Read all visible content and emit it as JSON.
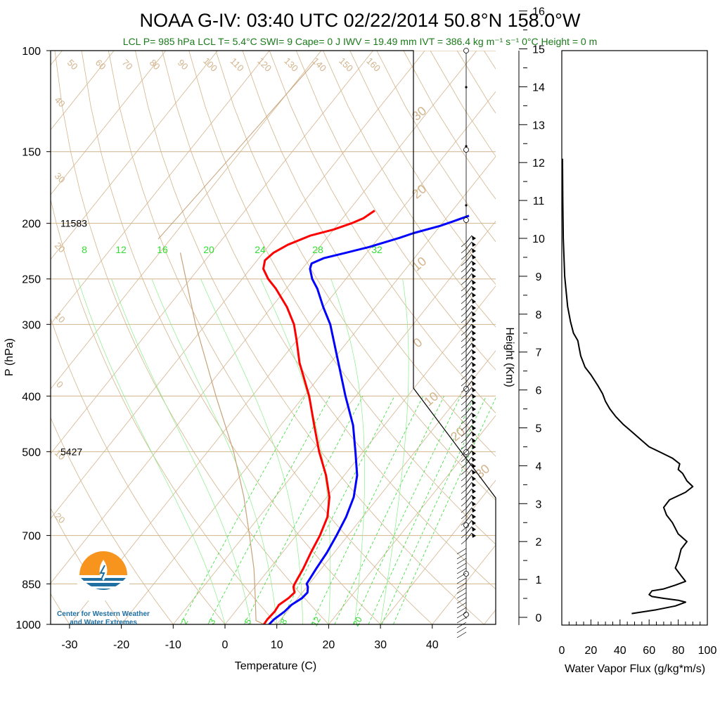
{
  "title": "NOAA G-IV: 03:40 UTC 02/22/2014  50.8°N 158.0°W",
  "subtitle": "LCL P= 985 hPa  LCL T= 5.4°C  SWI= 9  Cape= 0 J  IWV = 19.49 mm  IVT = 386.4 kg m⁻¹ s⁻¹  0°C Height = 0 m",
  "logo": {
    "line1": "Center for Western Weather",
    "line2": "and Water Extremes"
  },
  "colors": {
    "temperature": "#ff0000",
    "dewpoint": "#0000ff",
    "isotherm": "#d2b48c",
    "mixing_ratio": "#33dd33",
    "subtitle": "#1a7a1a"
  },
  "chart_data": [
    {
      "type": "line",
      "subtype": "skew-t",
      "xlabel": "Temperature (C)",
      "ylabel": "P (hPa)",
      "xlim": [
        -33,
        52
      ],
      "ylim": [
        1000,
        100
      ],
      "y_scale": "log",
      "x_ticks": [
        "-30",
        "-20",
        "-10",
        "0",
        "10",
        "20",
        "30",
        "40"
      ],
      "y_ticks": [
        "100",
        "150",
        "200",
        "250",
        "300",
        "400",
        "500",
        "700",
        "850",
        "1000"
      ],
      "height_annotations": [
        {
          "p": 200,
          "label": "11583"
        },
        {
          "p": 500,
          "label": "5427"
        }
      ],
      "isotherm_labels_top": [
        "50",
        "60",
        "70",
        "80",
        "90",
        "100",
        "110",
        "120",
        "130",
        "140",
        "150",
        "160"
      ],
      "isotherm_labels_left": [
        "40",
        "30",
        "20",
        "10",
        "0",
        "10",
        "20"
      ],
      "isotherm_labels_right": [
        "30",
        "20",
        "10",
        "0",
        "10",
        "20",
        "30"
      ],
      "mixing_ratio_labels_upper": [
        "8",
        "12",
        "16",
        "20",
        "24",
        "28",
        "32"
      ],
      "mixing_ratio_labels_lower": [
        "2",
        "3",
        "5",
        "8",
        "12",
        "20"
      ],
      "series": [
        {
          "name": "Temperature",
          "color": "#ff0000",
          "points": [
            [
              1000,
              7.5
            ],
            [
              980,
              7.4
            ],
            [
              950,
              7.6
            ],
            [
              925,
              7.4
            ],
            [
              900,
              8.2
            ],
            [
              880,
              8.5
            ],
            [
              860,
              7.4
            ],
            [
              850,
              7.2
            ],
            [
              800,
              6.5
            ],
            [
              750,
              5.5
            ],
            [
              700,
              4.6
            ],
            [
              650,
              3.2
            ],
            [
              600,
              0.5
            ],
            [
              550,
              -3.5
            ],
            [
              500,
              -8.5
            ],
            [
              450,
              -13.5
            ],
            [
              400,
              -19
            ],
            [
              350,
              -26
            ],
            [
              320,
              -30
            ],
            [
              300,
              -33
            ],
            [
              280,
              -37
            ],
            [
              260,
              -42
            ],
            [
              250,
              -45
            ],
            [
              240,
              -47.5
            ],
            [
              232,
              -48.5
            ],
            [
              225,
              -48
            ],
            [
              218,
              -46.5
            ],
            [
              210,
              -43.5
            ],
            [
              205,
              -40
            ],
            [
              200,
              -37.5
            ],
            [
              196,
              -36
            ],
            [
              190,
              -35
            ]
          ]
        },
        {
          "name": "Dewpoint",
          "color": "#0000ff",
          "points": [
            [
              1000,
              8.5
            ],
            [
              980,
              8.7
            ],
            [
              950,
              9.5
            ],
            [
              925,
              9.8
            ],
            [
              900,
              10.8
            ],
            [
              880,
              11
            ],
            [
              860,
              10.2
            ],
            [
              850,
              9.5
            ],
            [
              800,
              9
            ],
            [
              750,
              8.6
            ],
            [
              700,
              7.8
            ],
            [
              650,
              6.8
            ],
            [
              600,
              5.2
            ],
            [
              550,
              2.5
            ],
            [
              500,
              -1.5
            ],
            [
              450,
              -6
            ],
            [
              400,
              -12
            ],
            [
              350,
              -18.5
            ],
            [
              300,
              -26
            ],
            [
              280,
              -30
            ],
            [
              260,
              -34
            ],
            [
              250,
              -36.5
            ],
            [
              240,
              -38.5
            ],
            [
              235,
              -39
            ],
            [
              230,
              -37.5
            ],
            [
              225,
              -34
            ],
            [
              220,
              -30.5
            ],
            [
              212,
              -26
            ],
            [
              208,
              -24
            ],
            [
              202,
              -20
            ],
            [
              199,
              -18.5
            ],
            [
              194,
              -16
            ]
          ]
        }
      ]
    },
    {
      "type": "line",
      "xlabel": "Water Vapor Flux (g/kg*m/s)",
      "ylabel": "Height (Km)",
      "xlim": [
        0,
        100
      ],
      "ylim": [
        0,
        16.5
      ],
      "x_ticks": [
        "0",
        "20",
        "40",
        "60",
        "80",
        "100"
      ],
      "y_ticks": [
        "0",
        "1",
        "2",
        "3",
        "4",
        "5",
        "6",
        "7",
        "8",
        "9",
        "10",
        "11",
        "12",
        "13",
        "14",
        "15",
        "16"
      ],
      "series": [
        {
          "name": "Water Vapor Flux",
          "color": "#000000",
          "points": [
            [
              48,
              0.1
            ],
            [
              65,
              0.2
            ],
            [
              78,
              0.3
            ],
            [
              85,
              0.4
            ],
            [
              80,
              0.45
            ],
            [
              70,
              0.5
            ],
            [
              62,
              0.55
            ],
            [
              60,
              0.6
            ],
            [
              62,
              0.7
            ],
            [
              70,
              0.75
            ],
            [
              78,
              0.85
            ],
            [
              85,
              0.95
            ],
            [
              82,
              1.1
            ],
            [
              78,
              1.3
            ],
            [
              80,
              1.5
            ],
            [
              82,
              1.8
            ],
            [
              86,
              2.0
            ],
            [
              80,
              2.2
            ],
            [
              76,
              2.5
            ],
            [
              72,
              2.7
            ],
            [
              70,
              2.9
            ],
            [
              74,
              3.1
            ],
            [
              85,
              3.3
            ],
            [
              90,
              3.45
            ],
            [
              86,
              3.6
            ],
            [
              83,
              3.8
            ],
            [
              80,
              3.9
            ],
            [
              81,
              4.05
            ],
            [
              76,
              4.2
            ],
            [
              68,
              4.35
            ],
            [
              60,
              4.5
            ],
            [
              54,
              4.7
            ],
            [
              48,
              4.9
            ],
            [
              42,
              5.1
            ],
            [
              37,
              5.3
            ],
            [
              33,
              5.5
            ],
            [
              30,
              5.7
            ],
            [
              28,
              5.9
            ],
            [
              25,
              6.1
            ],
            [
              20,
              6.4
            ],
            [
              16,
              6.6
            ],
            [
              13,
              6.9
            ],
            [
              12,
              7.1
            ],
            [
              11,
              7.3
            ],
            [
              8,
              7.5
            ],
            [
              6,
              7.8
            ],
            [
              4,
              8.2
            ],
            [
              3,
              8.6
            ],
            [
              2,
              9.0
            ],
            [
              1.5,
              9.5
            ],
            [
              1,
              10
            ],
            [
              0.7,
              11
            ],
            [
              0.5,
              12
            ],
            [
              0.5,
              12.1
            ]
          ]
        }
      ]
    }
  ]
}
